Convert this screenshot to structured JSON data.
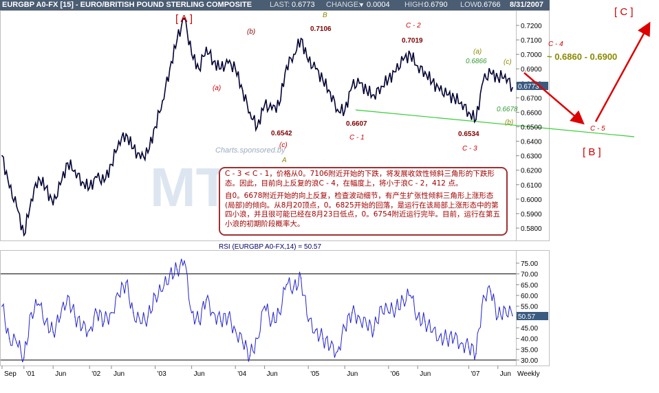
{
  "header": {
    "title": "EURGBP A0-FX [15] - EURO/BRITISH POUND STERLING COMPOSITE",
    "last_label": "LAST:",
    "last_value": "0.6773",
    "change_label": "CHANGE:",
    "change_value": "0.0004",
    "high_label": "HIGH:",
    "high_value": "0.6790",
    "low_label": "LOW:",
    "low_value": "0.6766",
    "date": "8/31/2007"
  },
  "watermark": "Charts.sponsored.by",
  "colors": {
    "price_line": "#000033",
    "rsi_line": "#2222cc",
    "wave_red": "#cc0000",
    "wave_dark": "#800000",
    "wave_olive": "#8a8a00",
    "wave_green": "#339933",
    "support_line": "#33cc33",
    "header_bg": "#4b5d73",
    "price_badge": "#3a5a80",
    "watermark": "#c8d6e6"
  },
  "price_axis": {
    "ticks": [
      "0.7200",
      "0.7100",
      "0.7000",
      "0.6900",
      "0.6800",
      "0.6700",
      "0.6600",
      "0.6500",
      "0.6400",
      "0.6300",
      "0.6200",
      "0.6100",
      "0.6000",
      "0.5900",
      "0.5800"
    ],
    "current": "0.6773"
  },
  "rsi": {
    "title": "RSI (EURGBP A0-FX,14) = 50.57",
    "current": "50.57",
    "ticks": [
      "75.00",
      "70.00",
      "65.00",
      "60.00",
      "55.00",
      "50.00",
      "45.00",
      "40.00",
      "35.00",
      "30.00"
    ],
    "upper": 70,
    "lower": 30
  },
  "x_axis": {
    "labels": [
      "Sep",
      "'01",
      "Jun",
      "'02",
      "Jun",
      "'03",
      "Jun",
      "'04",
      "Jun",
      "'05",
      "Jun",
      "'06",
      "Jun",
      "'07",
      "Jun"
    ],
    "period": "Weekly"
  },
  "waves": {
    "A_big": "[ A ]",
    "B_big": "[ B ]",
    "C_big": "[ C ]",
    "a1": "(a)",
    "b1": "(b)",
    "c1": "(c)",
    "A": "A",
    "B": "B",
    "p7106": "0.7106",
    "p6542": "0.6542",
    "p6607": "0.6607",
    "C1": "C - 1",
    "p7019": "0.7019",
    "C2": "C - 2",
    "p6534": "0.6534",
    "C3": "C - 3",
    "a2": "(a)",
    "p6866": "0.6866",
    "c2": "(c)",
    "p6678": "0.6678",
    "b2": "(b)",
    "C4": "C - 4",
    "target": "~ 0.6860 - 0.6900",
    "C5": "C - 5"
  },
  "note": {
    "para1": "C - 3 < C - 1，价格从0。7106附近开始的下跌，将发展收敛性倾斜三角形的下跌形态。因此，目前向上反复的浪C - 4，在幅度上，将小于浪C - 2，412 点。",
    "para2": "自0。6678附近开始的向上反复，检查波动细节，有产生扩张性倾斜三角形上涨形态(局部)的倾向。从8月20顶点，0。6825开始的回落，是运行在该局部上涨形态中的第四小浪，并且很可能已经在8月23日低点，0。6754附近运行完毕。目前，运行在第五小浪的初期阶段概率大。"
  },
  "chart_data": {
    "type": "line",
    "title": "EURGBP A0-FX [15] - EURO/BRITISH POUND STERLING COMPOSITE",
    "period": "Weekly",
    "x": [
      "2000-09",
      "2000-10",
      "2000-12",
      "2001-01",
      "2001-02",
      "2001-03",
      "2001-04",
      "2001-06",
      "2001-07",
      "2001-08",
      "2001-10",
      "2001-12",
      "2002-01",
      "2002-02",
      "2002-04",
      "2002-06",
      "2002-07",
      "2002-08",
      "2002-10",
      "2002-11",
      "2002-12",
      "2003-01",
      "2003-02",
      "2003-03",
      "2003-04",
      "2003-05",
      "2003-06",
      "2003-07",
      "2003-08",
      "2003-09",
      "2003-10",
      "2003-11",
      "2004-01",
      "2004-02",
      "2004-03",
      "2004-05",
      "2004-06",
      "2004-07",
      "2004-08",
      "2004-10",
      "2004-11",
      "2004-12",
      "2005-01",
      "2005-02",
      "2005-03",
      "2005-04",
      "2005-05",
      "2005-06",
      "2005-07",
      "2005-08",
      "2005-09",
      "2005-11",
      "2005-12",
      "2006-01",
      "2006-02",
      "2006-04",
      "2006-05",
      "2006-06",
      "2006-07",
      "2006-08",
      "2006-09",
      "2006-10",
      "2006-11",
      "2006-12",
      "2007-01",
      "2007-02",
      "2007-03",
      "2007-05",
      "2007-06",
      "2007-07",
      "2007-08"
    ],
    "series": [
      {
        "values": [
          0.63,
          0.608,
          0.595,
          0.575,
          0.6,
          0.615,
          0.608,
          0.596,
          0.61,
          0.625,
          0.62,
          0.612,
          0.608,
          0.615,
          0.612,
          0.624,
          0.64,
          0.645,
          0.635,
          0.628,
          0.632,
          0.65,
          0.668,
          0.69,
          0.71,
          0.725,
          0.7,
          0.69,
          0.705,
          0.695,
          0.69,
          0.694,
          0.69,
          0.675,
          0.66,
          0.65,
          0.665,
          0.662,
          0.665,
          0.692,
          0.7,
          0.711,
          0.695,
          0.69,
          0.682,
          0.674,
          0.662,
          0.661,
          0.678,
          0.68,
          0.675,
          0.672,
          0.678,
          0.683,
          0.688,
          0.696,
          0.7,
          0.692,
          0.688,
          0.681,
          0.675,
          0.672,
          0.67,
          0.667,
          0.66,
          0.655,
          0.682,
          0.687,
          0.684,
          0.686,
          0.677
        ],
        "annotations": [
          {
            "label": "0.7106",
            "x": "2004-12",
            "y": 0.7106
          },
          {
            "label": "0.6542",
            "x": "2004-05",
            "y": 0.6542
          },
          {
            "label": "0.6607",
            "x": "2005-06",
            "y": 0.6607
          },
          {
            "label": "0.7019",
            "x": "2006-05",
            "y": 0.7019
          },
          {
            "label": "0.6534",
            "x": "2007-02",
            "y": 0.6534
          },
          {
            "label": "0.6866",
            "x": "2007-05",
            "y": 0.6866
          },
          {
            "label": "0.6678",
            "x": "2007-07",
            "y": 0.6678
          }
        ]
      },
      {
        "name": "RSI (EURGBP A0-FX,14) = 50.57",
        "values": [
          55,
          40,
          38,
          31,
          52,
          56,
          48,
          43,
          50,
          60,
          50,
          45,
          44,
          52,
          48,
          52,
          60,
          66,
          52,
          47,
          50,
          60,
          62,
          70,
          72,
          76,
          52,
          48,
          58,
          52,
          48,
          50,
          44,
          38,
          32,
          40,
          55,
          48,
          52,
          65,
          64,
          68,
          48,
          44,
          40,
          36,
          34,
          45,
          52,
          50,
          46,
          44,
          55,
          52,
          54,
          58,
          60,
          50,
          48,
          43,
          41,
          40,
          40,
          38,
          36,
          33,
          60,
          62,
          50,
          54,
          50.57
        ]
      }
    ],
    "ylim": [
      0.575,
      0.725
    ],
    "rsi_ylim": [
      29,
      77
    ]
  }
}
